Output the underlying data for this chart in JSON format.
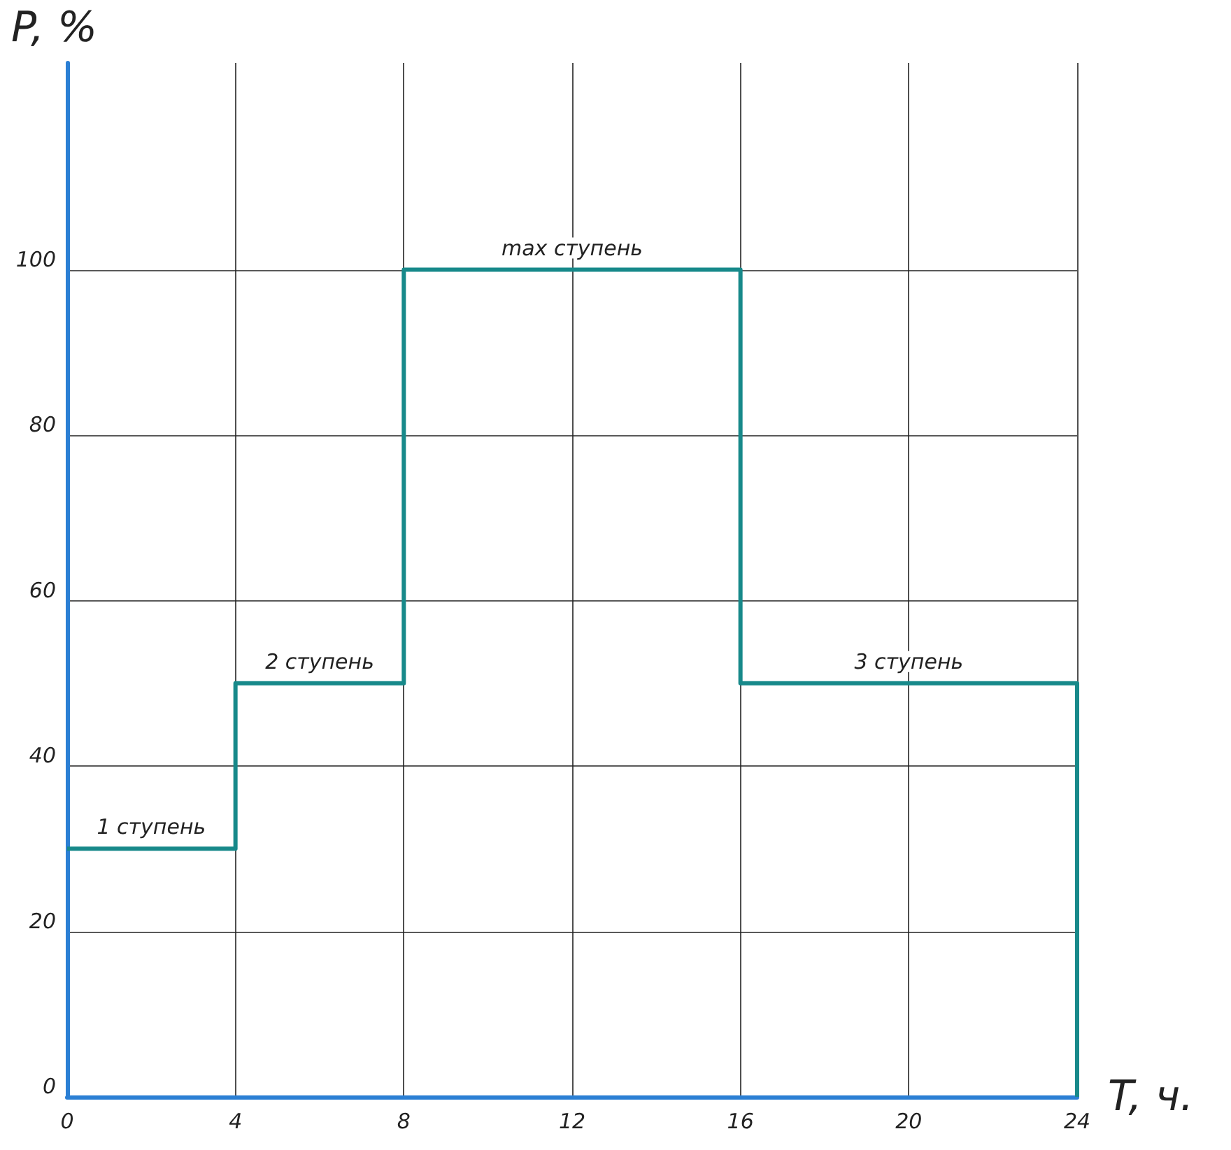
{
  "chart_data": {
    "type": "step",
    "xlabel": "T, ч.",
    "ylabel": "P, %",
    "x": [
      0,
      4,
      8,
      16,
      24
    ],
    "series": [
      {
        "color": "#17898a",
        "values": [
          30,
          50,
          100,
          50,
          0
        ]
      }
    ],
    "xlim": [
      0,
      24
    ],
    "xticks": [
      0,
      4,
      8,
      12,
      16,
      20,
      24
    ],
    "ylim": [
      0,
      125
    ],
    "yticks": [
      0,
      20,
      40,
      60,
      80,
      100
    ],
    "annotations": [
      {
        "text": "1 ступень",
        "x": 2,
        "y": 30
      },
      {
        "text": "2 ступень",
        "x": 6,
        "y": 50
      },
      {
        "text": "max ступень",
        "x": 12,
        "y": 100
      },
      {
        "text": "3 ступень",
        "x": 20,
        "y": 50
      }
    ],
    "grid": true,
    "marker": "none",
    "line_style": "solid"
  }
}
